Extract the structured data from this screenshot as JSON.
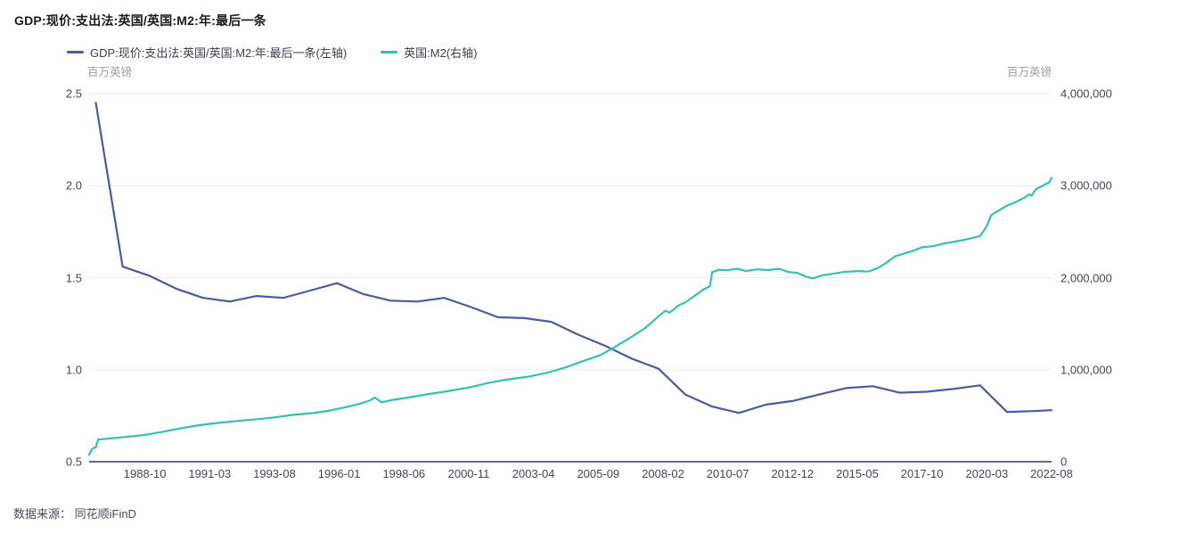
{
  "header": {
    "title": "GDP:现价:支出法:英国/英国:M2:年:最后一条"
  },
  "legend": {
    "items": [
      {
        "label": "GDP:现价:支出法:英国/英国:M2:年:最后一条(左轴)",
        "color": "#5059a0"
      },
      {
        "label": "英国:M2(右轴)",
        "color": "#35c1af"
      }
    ]
  },
  "axes": {
    "left_unit": "百万英镑",
    "right_unit": "百万英镑"
  },
  "footer": {
    "text": "数据来源： 同花顺iFinD"
  },
  "colors": {
    "gdp_line": "#5059a0",
    "m2_line": "#35c1af",
    "grid": "#eaeaf0",
    "axis_line": "#3a3a5c"
  },
  "chart_data": {
    "type": "line",
    "title": "GDP:现价:支出法:英国/英国:M2:年:最后一条",
    "grid": true,
    "legend_position": "top-left",
    "x_axis": {
      "type": "month",
      "start": "1986-09",
      "end": "2022-08",
      "tick_labels": [
        "1988-10",
        "1991-03",
        "1993-08",
        "1996-01",
        "1998-06",
        "2000-11",
        "2003-04",
        "2005-09",
        "2008-02",
        "2010-07",
        "2012-12",
        "2015-05",
        "2017-10",
        "2020-03",
        "2022-08"
      ]
    },
    "left_axis": {
      "unit": "百万英镑",
      "min": 0.5,
      "max": 2.5,
      "ticks": [
        {
          "value": 2.5,
          "label": "2.5"
        },
        {
          "value": 2.0,
          "label": "2.0"
        },
        {
          "value": 1.5,
          "label": "1.5"
        },
        {
          "value": 1.0,
          "label": "1.0"
        },
        {
          "value": 0.5,
          "label": "0.5"
        }
      ]
    },
    "right_axis": {
      "unit": "百万英镑",
      "min": 0,
      "max": 4000000,
      "ticks": [
        {
          "value": 4000000,
          "label": "4,000,000"
        },
        {
          "value": 3000000,
          "label": "3,000,000"
        },
        {
          "value": 2000000,
          "label": "2,000,000"
        },
        {
          "value": 1000000,
          "label": "1,000,000"
        },
        {
          "value": 0,
          "label": "0"
        }
      ]
    },
    "series": [
      {
        "name": "GDP:现价:支出法:英国/英国:M2:年:最后一条(左轴)",
        "axis": "left",
        "color": "#5059a0",
        "points": [
          [
            "1986-12",
            2.45
          ],
          [
            "1987-12",
            1.56
          ],
          [
            "1988-12",
            1.51
          ],
          [
            "1989-12",
            1.44
          ],
          [
            "1990-12",
            1.39
          ],
          [
            "1991-12",
            1.37
          ],
          [
            "1992-12",
            1.4
          ],
          [
            "1993-12",
            1.39
          ],
          [
            "1994-12",
            1.43
          ],
          [
            "1995-12",
            1.47
          ],
          [
            "1996-12",
            1.41
          ],
          [
            "1997-12",
            1.375
          ],
          [
            "1998-12",
            1.37
          ],
          [
            "1999-12",
            1.39
          ],
          [
            "2000-12",
            1.34
          ],
          [
            "2001-12",
            1.285
          ],
          [
            "2002-12",
            1.28
          ],
          [
            "2003-12",
            1.26
          ],
          [
            "2004-12",
            1.19
          ],
          [
            "2005-12",
            1.13
          ],
          [
            "2006-12",
            1.06
          ],
          [
            "2007-12",
            1.005
          ],
          [
            "2008-12",
            0.865
          ],
          [
            "2009-12",
            0.8
          ],
          [
            "2010-12",
            0.765
          ],
          [
            "2011-12",
            0.81
          ],
          [
            "2012-12",
            0.83
          ],
          [
            "2013-12",
            0.865
          ],
          [
            "2014-12",
            0.9
          ],
          [
            "2015-12",
            0.91
          ],
          [
            "2016-12",
            0.875
          ],
          [
            "2017-12",
            0.88
          ],
          [
            "2018-12",
            0.895
          ],
          [
            "2019-12",
            0.915
          ],
          [
            "2020-12",
            0.77
          ],
          [
            "2021-12",
            0.775
          ],
          [
            "2022-08",
            0.78
          ]
        ]
      },
      {
        "name": "英国:M2(右轴)",
        "axis": "right",
        "color": "#35c1af",
        "points": [
          [
            "1986-09",
            75000
          ],
          [
            "1986-10",
            125000
          ],
          [
            "1986-11",
            150000
          ],
          [
            "1986-12",
            155000
          ],
          [
            "1987-01",
            240000
          ],
          [
            "1987-06",
            252000
          ],
          [
            "1988-01",
            268000
          ],
          [
            "1988-10",
            292000
          ],
          [
            "1989-06",
            325000
          ],
          [
            "1990-01",
            358000
          ],
          [
            "1990-08",
            388000
          ],
          [
            "1991-03",
            412000
          ],
          [
            "1991-10",
            430000
          ],
          [
            "1992-06",
            448000
          ],
          [
            "1993-01",
            463000
          ],
          [
            "1993-08",
            481000
          ],
          [
            "1994-04",
            508000
          ],
          [
            "1995-01",
            528000
          ],
          [
            "1995-08",
            552000
          ],
          [
            "1996-03",
            588000
          ],
          [
            "1996-10",
            628000
          ],
          [
            "1997-03",
            668000
          ],
          [
            "1997-05",
            697000
          ],
          [
            "1997-08",
            645000
          ],
          [
            "1998-01",
            672000
          ],
          [
            "1998-08",
            697000
          ],
          [
            "1999-04",
            731000
          ],
          [
            "2000-01",
            764000
          ],
          [
            "2000-11",
            806000
          ],
          [
            "2001-08",
            856000
          ],
          [
            "2002-04",
            892000
          ],
          [
            "2003-01",
            921000
          ],
          [
            "2003-10",
            966000
          ],
          [
            "2004-06",
            1022000
          ],
          [
            "2005-02",
            1092000
          ],
          [
            "2005-10",
            1158000
          ],
          [
            "2006-04",
            1242000
          ],
          [
            "2006-11",
            1342000
          ],
          [
            "2007-06",
            1452000
          ],
          [
            "2007-12",
            1580000
          ],
          [
            "2008-03",
            1640000
          ],
          [
            "2008-05",
            1620000
          ],
          [
            "2008-09",
            1700000
          ],
          [
            "2008-12",
            1730000
          ],
          [
            "2009-04",
            1800000
          ],
          [
            "2009-08",
            1870000
          ],
          [
            "2009-11",
            1905000
          ],
          [
            "2009-12",
            2060000
          ],
          [
            "2010-03",
            2085000
          ],
          [
            "2010-07",
            2080000
          ],
          [
            "2010-11",
            2098000
          ],
          [
            "2011-03",
            2072000
          ],
          [
            "2011-08",
            2090000
          ],
          [
            "2012-01",
            2082000
          ],
          [
            "2012-06",
            2096000
          ],
          [
            "2012-10",
            2062000
          ],
          [
            "2013-02",
            2052000
          ],
          [
            "2013-06",
            2012000
          ],
          [
            "2013-09",
            1992000
          ],
          [
            "2014-01",
            2022000
          ],
          [
            "2014-06",
            2042000
          ],
          [
            "2014-11",
            2062000
          ],
          [
            "2015-05",
            2072000
          ],
          [
            "2015-10",
            2066000
          ],
          [
            "2016-02",
            2102000
          ],
          [
            "2016-06",
            2162000
          ],
          [
            "2016-10",
            2232000
          ],
          [
            "2017-02",
            2262000
          ],
          [
            "2017-06",
            2292000
          ],
          [
            "2017-10",
            2330000
          ],
          [
            "2018-03",
            2342000
          ],
          [
            "2018-08",
            2372000
          ],
          [
            "2019-01",
            2392000
          ],
          [
            "2019-07",
            2422000
          ],
          [
            "2019-12",
            2452000
          ],
          [
            "2020-03",
            2560000
          ],
          [
            "2020-05",
            2680000
          ],
          [
            "2020-08",
            2725000
          ],
          [
            "2020-12",
            2782000
          ],
          [
            "2021-04",
            2822000
          ],
          [
            "2021-08",
            2872000
          ],
          [
            "2021-10",
            2905000
          ],
          [
            "2021-11",
            2890000
          ],
          [
            "2022-01",
            2962000
          ],
          [
            "2022-03",
            2985000
          ],
          [
            "2022-05",
            3012000
          ],
          [
            "2022-07",
            3035000
          ],
          [
            "2022-08",
            3085000
          ]
        ]
      }
    ]
  }
}
